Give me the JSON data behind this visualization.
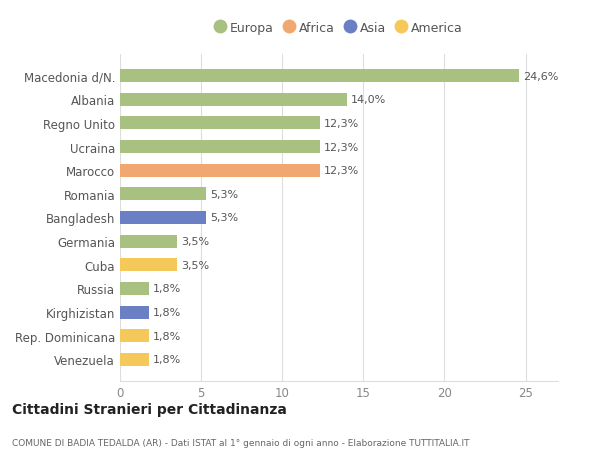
{
  "categories": [
    "Venezuela",
    "Rep. Dominicana",
    "Kirghizistan",
    "Russia",
    "Cuba",
    "Germania",
    "Bangladesh",
    "Romania",
    "Marocco",
    "Ucraina",
    "Regno Unito",
    "Albania",
    "Macedonia d/N."
  ],
  "values": [
    1.8,
    1.8,
    1.8,
    1.8,
    3.5,
    3.5,
    5.3,
    5.3,
    12.3,
    12.3,
    12.3,
    14.0,
    24.6
  ],
  "colors": [
    "#f5c85a",
    "#f5c85a",
    "#6b7fc4",
    "#a8c080",
    "#f5c85a",
    "#a8c080",
    "#6b7fc4",
    "#a8c080",
    "#f0a870",
    "#a8c080",
    "#a8c080",
    "#a8c080",
    "#a8c080"
  ],
  "labels": [
    "1,8%",
    "1,8%",
    "1,8%",
    "1,8%",
    "3,5%",
    "3,5%",
    "5,3%",
    "5,3%",
    "12,3%",
    "12,3%",
    "12,3%",
    "14,0%",
    "24,6%"
  ],
  "legend": [
    {
      "label": "Europa",
      "color": "#a8c080"
    },
    {
      "label": "Africa",
      "color": "#f0a870"
    },
    {
      "label": "Asia",
      "color": "#6b7fc4"
    },
    {
      "label": "America",
      "color": "#f5c85a"
    }
  ],
  "xlim": [
    0,
    27
  ],
  "xticks": [
    0,
    5,
    10,
    15,
    20,
    25
  ],
  "title": "Cittadini Stranieri per Cittadinanza",
  "subtitle": "COMUNE DI BADIA TEDALDA (AR) - Dati ISTAT al 1° gennaio di ogni anno - Elaborazione TUTTITALIA.IT",
  "bg_color": "#ffffff",
  "grid_color": "#dddddd",
  "label_color": "#555555",
  "tick_color": "#888888"
}
